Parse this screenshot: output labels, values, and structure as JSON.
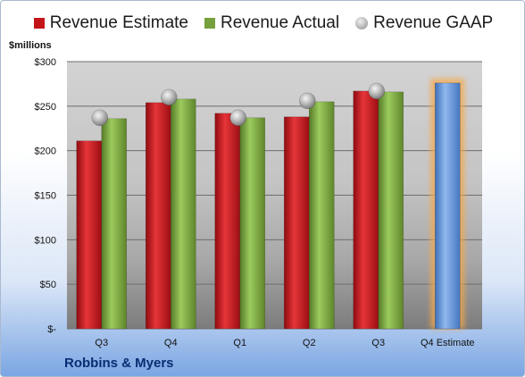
{
  "legend": {
    "estimate": "Revenue Estimate",
    "actual": "Revenue Actual",
    "gaap": "Revenue GAAP"
  },
  "unit_label": "$millions",
  "company": "Robbins & Myers",
  "colors": {
    "estimate": "#c3141a",
    "actual": "#76a03b",
    "forecast": "#5b8fd6",
    "forecast_glow": "#f5a84a",
    "gaap": "#b3b3b3"
  },
  "chart_data": {
    "type": "bar",
    "categories": [
      "Q3",
      "Q4",
      "Q1",
      "Q2",
      "Q3",
      "Q4 Estimate"
    ],
    "series": [
      {
        "name": "Revenue Estimate",
        "values": [
          211,
          254,
          242,
          238,
          267,
          null
        ]
      },
      {
        "name": "Revenue Actual",
        "values": [
          236,
          258,
          237,
          255,
          266,
          null
        ]
      },
      {
        "name": "Revenue GAAP",
        "values": [
          237,
          260,
          237,
          256,
          267,
          null
        ]
      },
      {
        "name": "",
        "values": [
          null,
          null,
          null,
          null,
          null,
          276
        ]
      }
    ],
    "ylim": [
      0,
      300
    ],
    "yticks": [
      0,
      50,
      100,
      150,
      200,
      250,
      300
    ],
    "ytick_labels": [
      "$-",
      "$50",
      "$100",
      "$150",
      "$200",
      "$250",
      "$300"
    ],
    "grid": true,
    "legend_position": "top"
  }
}
